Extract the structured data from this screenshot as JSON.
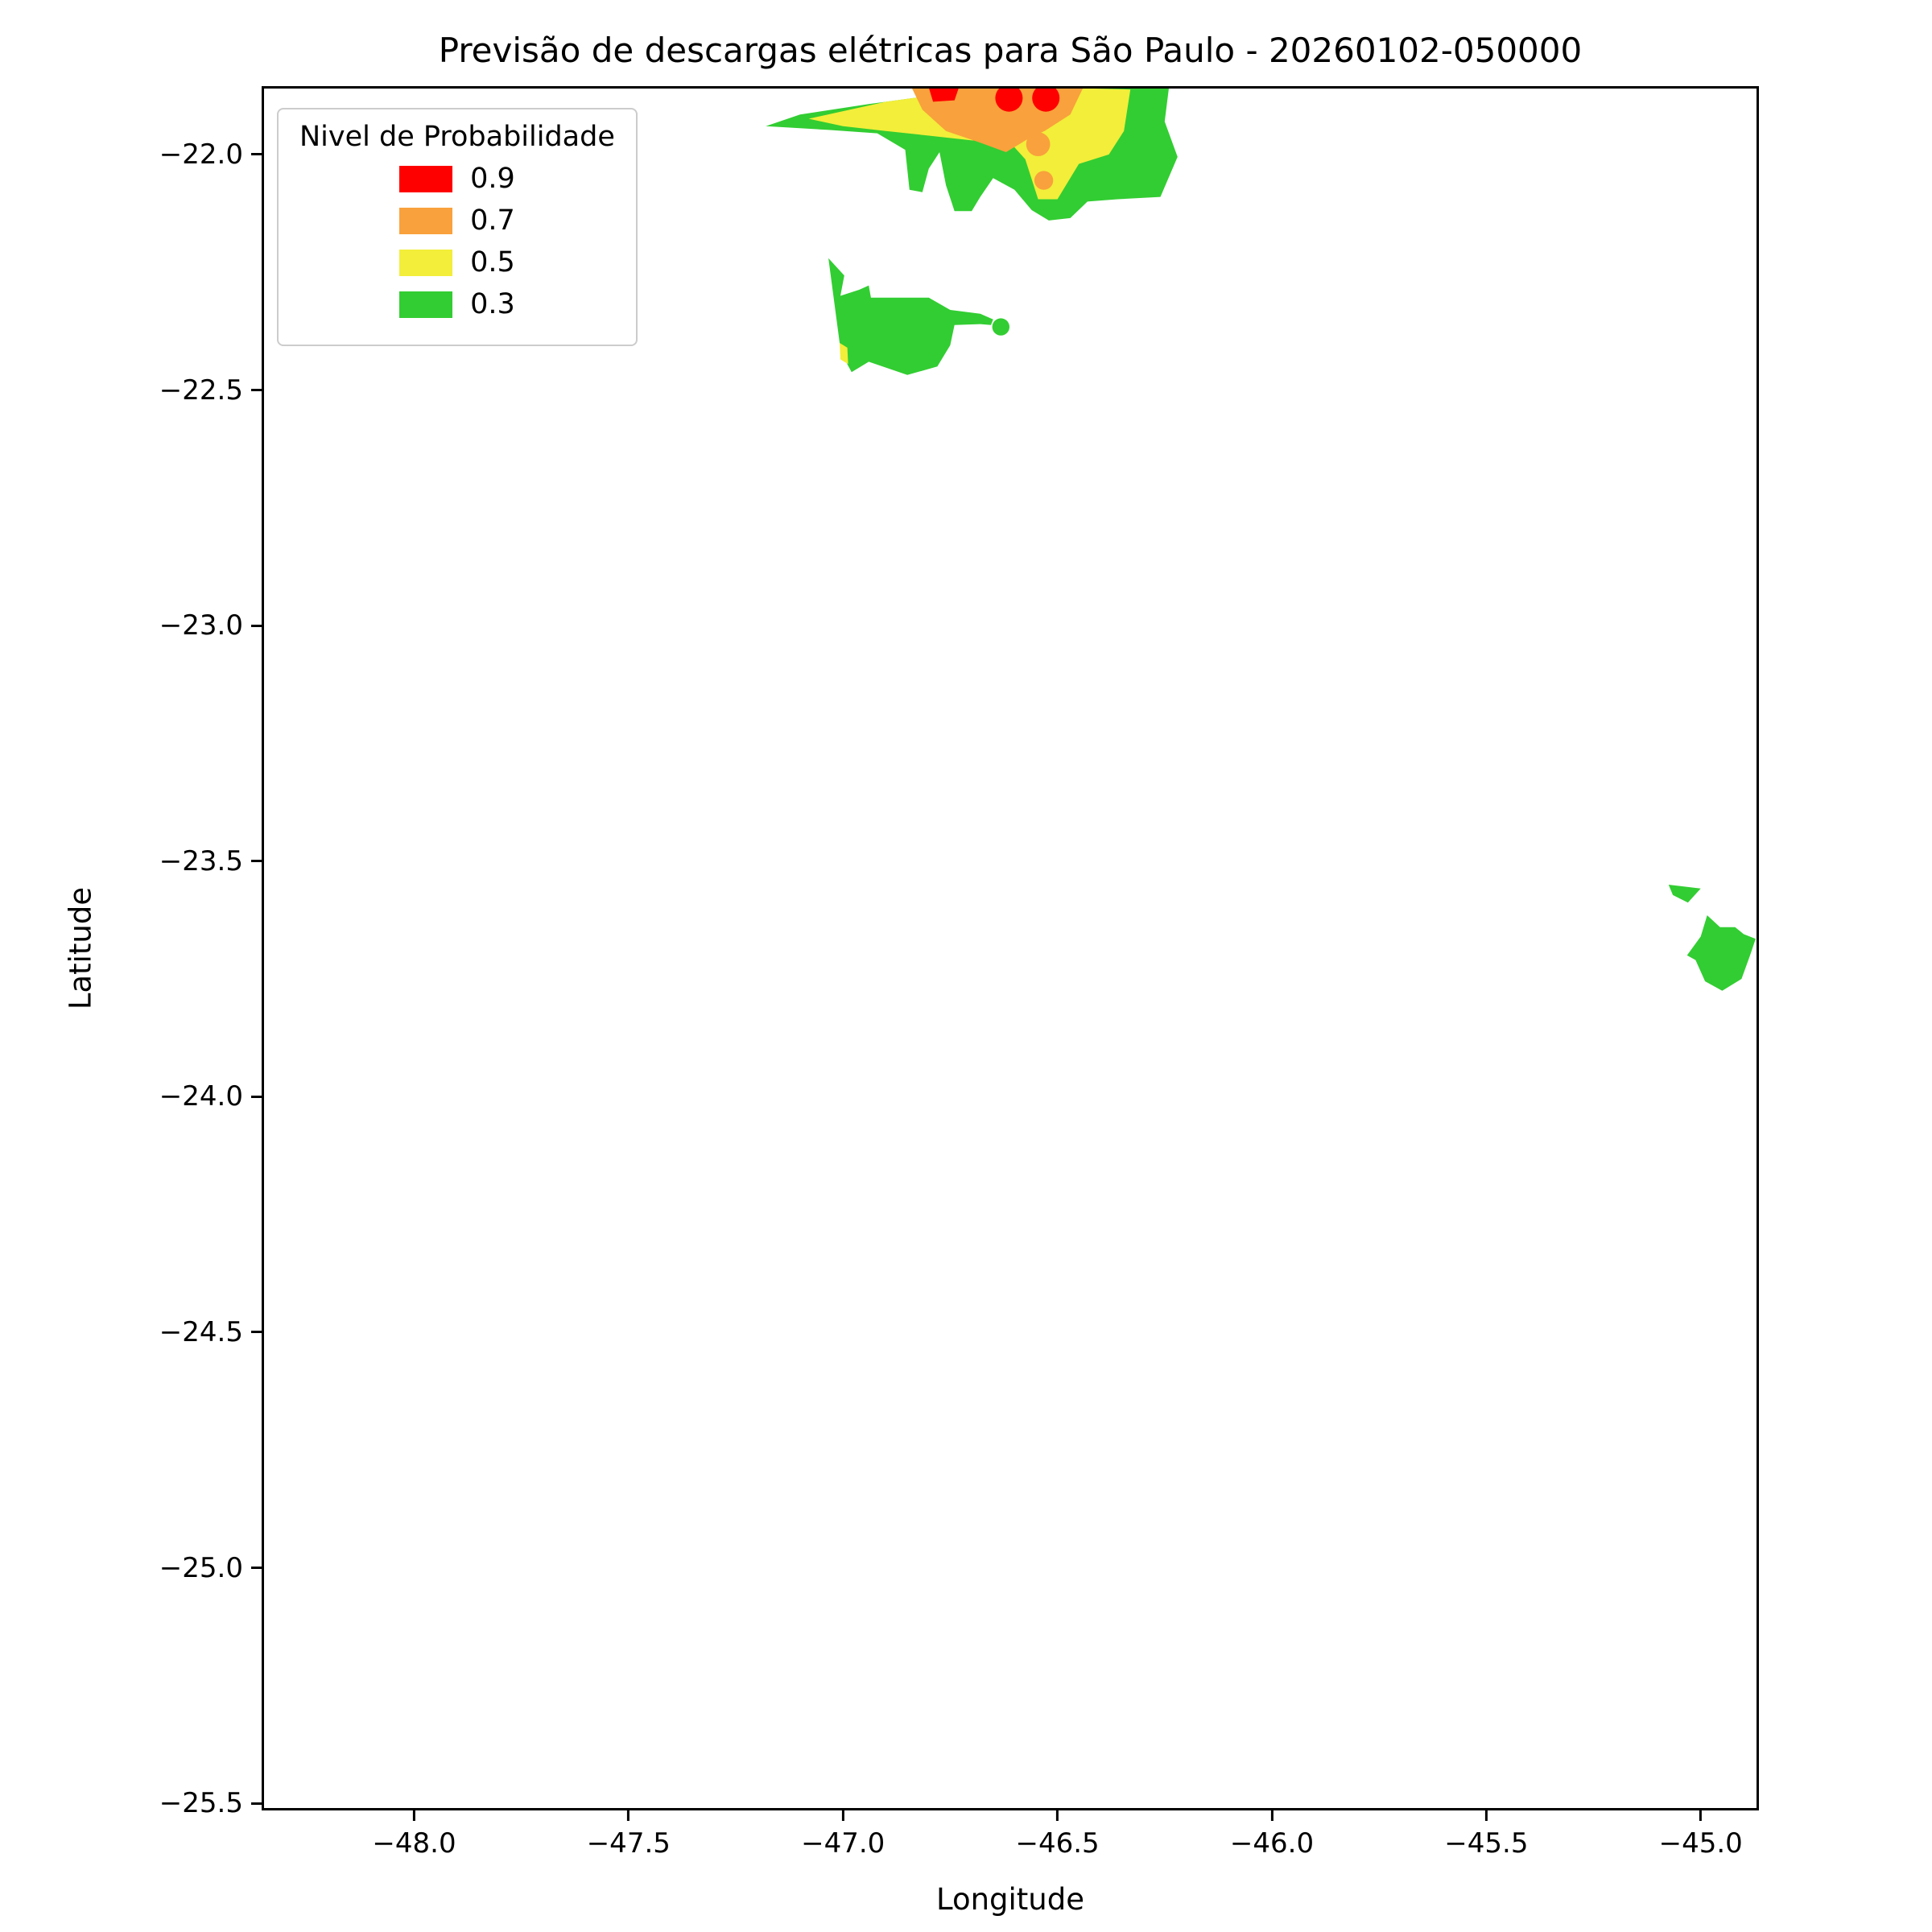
{
  "figure": {
    "title": "Previsão de descargas elétricas para São Paulo - 20260102-050000",
    "xlabel": "Longitude",
    "ylabel": "Latitude"
  },
  "legend": {
    "title": "Nivel de Probabilidade",
    "entries": [
      {
        "label": "0.9",
        "color": "#FF0000"
      },
      {
        "label": "0.7",
        "color": "#F9A13C"
      },
      {
        "label": "0.5",
        "color": "#F2EE3A"
      },
      {
        "label": "0.3",
        "color": "#32CD32"
      }
    ]
  },
  "chart_data": {
    "type": "filled-contour-map",
    "title": "Previsão de descargas elétricas para São Paulo - 20260102-050000",
    "xlabel": "Longitude",
    "ylabel": "Latitude",
    "xlim": [
      -48.35,
      -44.87
    ],
    "ylim": [
      -25.51,
      -21.86
    ],
    "grid": false,
    "legend_position": "upper left",
    "levels": [
      0.3,
      0.5,
      0.7,
      0.9
    ],
    "colors": {
      "0.3": "#32CD32",
      "0.5": "#F2EE3A",
      "0.7": "#F9A13C",
      "0.9": "#FF0000"
    },
    "xticks": {
      "values": [
        -48.0,
        -47.5,
        -47.0,
        -46.5,
        -46.0,
        -45.5,
        -45.0
      ],
      "labels": [
        "−48.0",
        "−47.5",
        "−47.0",
        "−46.5",
        "−46.0",
        "−45.5",
        "−45.0"
      ]
    },
    "yticks": {
      "values": [
        -22.0,
        -22.5,
        -23.0,
        -23.5,
        -24.0,
        -24.5,
        -25.0,
        -25.5
      ],
      "labels": [
        "−22.0",
        "−22.5",
        "−23.0",
        "−23.5",
        "−24.0",
        "−24.5",
        "−25.0",
        "−25.5"
      ]
    },
    "regions": [
      {
        "id": "north-green",
        "level": 0.3,
        "polygon": [
          [
            -47.18,
            -21.94
          ],
          [
            -47.1,
            -21.915
          ],
          [
            -46.94,
            -21.893
          ],
          [
            -46.77,
            -21.872
          ],
          [
            -46.6,
            -21.858
          ],
          [
            -46.24,
            -21.858
          ],
          [
            -46.25,
            -21.93
          ],
          [
            -46.22,
            -22.005
          ],
          [
            -46.26,
            -22.09
          ],
          [
            -46.36,
            -22.095
          ],
          [
            -46.43,
            -22.1
          ],
          [
            -46.47,
            -22.135
          ],
          [
            -46.52,
            -22.14
          ],
          [
            -46.56,
            -22.118
          ],
          [
            -46.6,
            -22.075
          ],
          [
            -46.65,
            -22.05
          ],
          [
            -46.68,
            -22.09
          ],
          [
            -46.7,
            -22.12
          ],
          [
            -46.74,
            -22.12
          ],
          [
            -46.76,
            -22.065
          ],
          [
            -46.775,
            -21.995
          ],
          [
            -46.8,
            -22.03
          ],
          [
            -46.815,
            -22.08
          ],
          [
            -46.845,
            -22.075
          ],
          [
            -46.855,
            -21.99
          ],
          [
            -46.92,
            -21.955
          ],
          [
            -47.03,
            -21.948
          ]
        ]
      },
      {
        "id": "central-green",
        "level": 0.3,
        "polygon": [
          [
            -47.034,
            -22.22
          ],
          [
            -46.997,
            -22.257
          ],
          [
            -47.006,
            -22.3
          ],
          [
            -46.962,
            -22.287
          ],
          [
            -46.94,
            -22.278
          ],
          [
            -46.935,
            -22.304
          ],
          [
            -46.8,
            -22.304
          ],
          [
            -46.75,
            -22.33
          ],
          [
            -46.68,
            -22.338
          ],
          [
            -46.65,
            -22.35
          ],
          [
            -46.655,
            -22.362
          ],
          [
            -46.68,
            -22.36
          ],
          [
            -46.74,
            -22.362
          ],
          [
            -46.75,
            -22.405
          ],
          [
            -46.78,
            -22.45
          ],
          [
            -46.85,
            -22.468
          ],
          [
            -46.94,
            -22.44
          ],
          [
            -46.98,
            -22.462
          ],
          [
            -47.005,
            -22.42
          ],
          [
            -47.018,
            -22.33
          ]
        ]
      },
      {
        "id": "east-green-sliver",
        "level": 0.3,
        "polygon": [
          [
            -45.075,
            -23.55
          ],
          [
            -45.0,
            -23.558
          ],
          [
            -45.03,
            -23.588
          ],
          [
            -45.065,
            -23.572
          ]
        ]
      },
      {
        "id": "east-green",
        "level": 0.3,
        "polygon": [
          [
            -44.985,
            -23.615
          ],
          [
            -44.955,
            -23.64
          ],
          [
            -44.92,
            -23.64
          ],
          [
            -44.9,
            -23.655
          ],
          [
            -44.872,
            -23.665
          ],
          [
            -44.885,
            -23.7
          ],
          [
            -44.905,
            -23.75
          ],
          [
            -44.95,
            -23.775
          ],
          [
            -44.99,
            -23.755
          ],
          [
            -45.012,
            -23.71
          ],
          [
            -45.032,
            -23.7
          ],
          [
            -45.0,
            -23.66
          ]
        ]
      },
      {
        "id": "north-yellow",
        "level": 0.5,
        "polygon": [
          [
            -47.08,
            -21.924
          ],
          [
            -46.9,
            -21.888
          ],
          [
            -46.72,
            -21.866
          ],
          [
            -46.5,
            -21.858
          ],
          [
            -46.33,
            -21.862
          ],
          [
            -46.345,
            -21.95
          ],
          [
            -46.38,
            -22.0
          ],
          [
            -46.45,
            -22.02
          ],
          [
            -46.5,
            -22.095
          ],
          [
            -46.545,
            -22.095
          ],
          [
            -46.575,
            -22.01
          ],
          [
            -46.61,
            -21.975
          ],
          [
            -46.7,
            -21.97
          ],
          [
            -46.8,
            -21.96
          ],
          [
            -46.9,
            -21.95
          ],
          [
            -47.0,
            -21.94
          ]
        ]
      },
      {
        "id": "central-yellow-speck",
        "level": 0.5,
        "polygon": [
          [
            -47.008,
            -22.4
          ],
          [
            -46.99,
            -22.41
          ],
          [
            -46.988,
            -22.445
          ],
          [
            -47.006,
            -22.435
          ]
        ]
      },
      {
        "id": "north-orange",
        "level": 0.7,
        "polygon": [
          [
            -46.84,
            -21.858
          ],
          [
            -46.44,
            -21.858
          ],
          [
            -46.47,
            -21.915
          ],
          [
            -46.53,
            -21.95
          ],
          [
            -46.565,
            -21.965
          ],
          [
            -46.62,
            -21.995
          ],
          [
            -46.68,
            -21.975
          ],
          [
            -46.76,
            -21.95
          ],
          [
            -46.815,
            -21.905
          ]
        ]
      },
      {
        "id": "north-red-patch",
        "level": 0.9,
        "polygon": [
          [
            -46.8,
            -21.858
          ],
          [
            -46.73,
            -21.858
          ],
          [
            -46.74,
            -21.885
          ],
          [
            -46.79,
            -21.888
          ]
        ]
      }
    ],
    "markers": [
      {
        "id": "central-green-dot",
        "level": 0.3,
        "lon": -46.632,
        "lat": -22.366,
        "r": 0.02
      },
      {
        "id": "north-orange-dot-large",
        "level": 0.7,
        "lon": -46.545,
        "lat": -21.978,
        "r": 0.028
      },
      {
        "id": "north-orange-dot-small",
        "level": 0.7,
        "lon": -46.532,
        "lat": -22.055,
        "r": 0.022
      },
      {
        "id": "north-red-dot-west",
        "level": 0.9,
        "lon": -46.613,
        "lat": -21.88,
        "r": 0.032
      },
      {
        "id": "north-red-dot-east",
        "level": 0.9,
        "lon": -46.527,
        "lat": -21.88,
        "r": 0.032
      }
    ]
  }
}
